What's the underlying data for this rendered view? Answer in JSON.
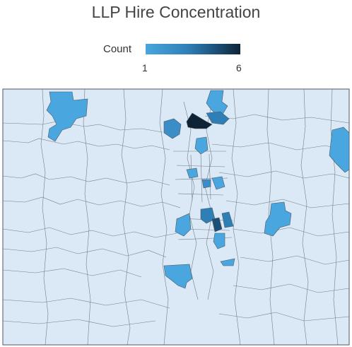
{
  "title": "LLP Hire Concentration",
  "legend": {
    "label": "Count",
    "min_label": "1",
    "max_label": "6",
    "min": 1,
    "max": 6,
    "colors": [
      "#49a6de",
      "#2f7fb7",
      "#1c4f76",
      "#0e2436"
    ]
  },
  "map": {
    "background_color": "#dbe8f6",
    "boundary_color": "#505a64",
    "highlighted_regions": [
      {
        "id": "nw",
        "count": 1
      },
      {
        "id": "north-central-a",
        "count": 2
      },
      {
        "id": "north-central-peak",
        "count": 6
      },
      {
        "id": "north-central-b",
        "count": 1
      },
      {
        "id": "north-central-c",
        "count": 2
      },
      {
        "id": "north-central-d",
        "count": 1
      },
      {
        "id": "east-edge",
        "count": 1
      },
      {
        "id": "center-a",
        "count": 1
      },
      {
        "id": "center-b",
        "count": 1
      },
      {
        "id": "center-c",
        "count": 2
      },
      {
        "id": "south-cluster-a",
        "count": 2
      },
      {
        "id": "south-cluster-b",
        "count": 3
      },
      {
        "id": "south-cluster-c",
        "count": 1
      },
      {
        "id": "south-cluster-d",
        "count": 2
      },
      {
        "id": "south-cluster-e",
        "count": 1
      },
      {
        "id": "east-mid",
        "count": 1
      },
      {
        "id": "south-east-small",
        "count": 1
      },
      {
        "id": "south-west",
        "count": 1
      }
    ]
  }
}
